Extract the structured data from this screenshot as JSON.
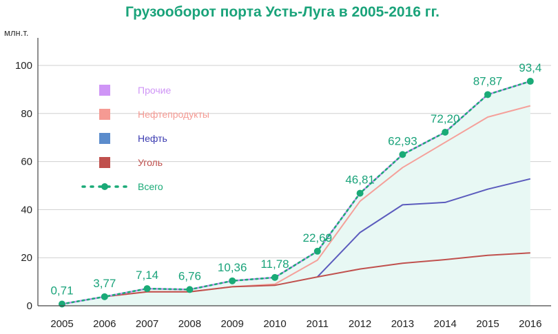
{
  "chart_data": {
    "type": "area",
    "title": "Грузооборот порта Усть-Луга в 2005-2016 гг.",
    "ylabel": "млн.т.",
    "xlabel": "",
    "ylim": [
      0,
      100
    ],
    "yticks": [
      0,
      20,
      40,
      60,
      80,
      100
    ],
    "grid": true,
    "legend_position": "top-left",
    "x": [
      2005,
      2006,
      2007,
      2008,
      2009,
      2010,
      2011,
      2012,
      2013,
      2014,
      2015,
      2016
    ],
    "series": [
      {
        "name": "Прочие",
        "color": "#c48cf0",
        "legend_color": "#cf95f6",
        "values": [
          0.71,
          3.77,
          7.14,
          6.76,
          10.36,
          11.78,
          22.69,
          46.81,
          62.93,
          72.2,
          87.87,
          93.4
        ]
      },
      {
        "name": "Нефтепродукты",
        "color": "#f5a09a",
        "legend_color": "#f59a93",
        "values": [
          0.71,
          3.77,
          5.8,
          5.8,
          7.9,
          9.0,
          19.0,
          43.5,
          57.5,
          68.0,
          78.5,
          83.2
        ]
      },
      {
        "name": "Нефть",
        "color": "#5b5bbd",
        "legend_color": "#5b8ccc",
        "values": [
          null,
          null,
          null,
          null,
          null,
          null,
          12.0,
          30.5,
          42.0,
          43.0,
          48.5,
          52.8
        ]
      },
      {
        "name": "Уголь",
        "color": "#c0504d",
        "legend_color": "#c0504d",
        "values": [
          0.71,
          3.77,
          5.8,
          5.8,
          7.9,
          8.5,
          12.0,
          15.3,
          17.7,
          19.2,
          21.0,
          22.0
        ]
      },
      {
        "name": "Всего",
        "color": "#1aaa77",
        "legend_color": "#1aaa77",
        "values": [
          0.71,
          3.77,
          7.14,
          6.76,
          10.36,
          11.78,
          22.69,
          46.81,
          62.93,
          72.2,
          87.87,
          93.4
        ]
      }
    ],
    "data_labels": [
      "0,71",
      "3,77",
      "7,14",
      "6,76",
      "10,36",
      "11,78",
      "22,69",
      "46,81",
      "62,93",
      "72,20",
      "87,87",
      "93,4"
    ],
    "area_fill": "#e8f8f4"
  }
}
